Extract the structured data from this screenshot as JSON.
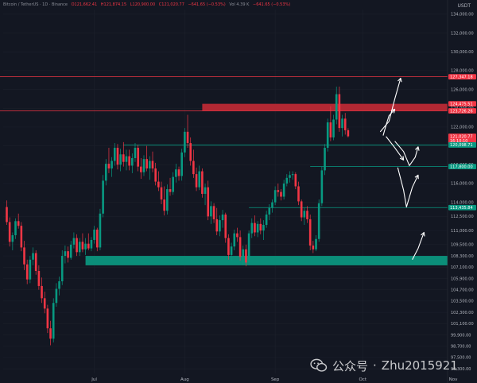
{
  "header": {
    "symbol": "Bitcoin / TetherUS · 1D · Binance",
    "o": "O121,662.41",
    "h": "H121,874.15",
    "l": "L120,900.00",
    "c": "C121,020.77",
    "chg": "−641.65 (−0.53%)",
    "vol": "Vol 4.39 K",
    "chg2": "−641.65 (−0.53%)"
  },
  "unit": "USDT",
  "watermark": {
    "app": "公众号",
    "separator": "·",
    "author": "Zhu2015921"
  },
  "colors": {
    "bg": "#131722",
    "up": "#089981",
    "down": "#f23645",
    "grid": "#1e222d",
    "label": "#b2b5be"
  },
  "chart_data": {
    "type": "candlestick",
    "y_range": [
      95800,
      134500
    ],
    "y_ticks": [
      {
        "v": 134000,
        "label": "134,000.00"
      },
      {
        "v": 132000,
        "label": "132,000.00"
      },
      {
        "v": 130000,
        "label": "130,000.00"
      },
      {
        "v": 128000,
        "label": "128,000.00"
      },
      {
        "v": 126000,
        "label": "126,000.00"
      },
      {
        "v": 124000,
        "label": "124,000.00"
      },
      {
        "v": 122000,
        "label": "122,000.00"
      },
      {
        "v": 120000,
        "label": "120,000.00"
      },
      {
        "v": 118000,
        "label": "118,000.00"
      },
      {
        "v": 116000,
        "label": "116,000.00"
      },
      {
        "v": 114000,
        "label": "114,000.00"
      },
      {
        "v": 112500,
        "label": "112,500.00"
      },
      {
        "v": 111000,
        "label": "111,000.00"
      },
      {
        "v": 109500,
        "label": "109,500.00"
      },
      {
        "v": 108300,
        "label": "108,300.00"
      },
      {
        "v": 107100,
        "label": "107,100.00"
      },
      {
        "v": 105900,
        "label": "105,900.00"
      },
      {
        "v": 104700,
        "label": "104,700.00"
      },
      {
        "v": 103500,
        "label": "103,500.00"
      },
      {
        "v": 102300,
        "label": "102,300.00"
      },
      {
        "v": 101100,
        "label": "101,100.00"
      },
      {
        "v": 99900,
        "label": "99,900.00"
      },
      {
        "v": 98700,
        "label": "98,700.00"
      },
      {
        "v": 97500,
        "label": "97,500.00"
      },
      {
        "v": 96300,
        "label": "96,300.00"
      }
    ],
    "x_labels": [
      {
        "day": 30,
        "label": "Jul"
      },
      {
        "day": 61,
        "label": "Aug"
      },
      {
        "day": 92,
        "label": "Sep"
      },
      {
        "day": 122,
        "label": "Oct"
      },
      {
        "day": 153,
        "label": "Nov"
      }
    ],
    "price_labels": [
      {
        "v": 127347.18,
        "label": "127,347.18",
        "color": "#f23645"
      },
      {
        "v": 124475.51,
        "label": "124,475.51",
        "color": "#f23645"
      },
      {
        "v": 123726.26,
        "label": "123,726.26",
        "color": "#f23645"
      },
      {
        "v": 121020.77,
        "label": "121,020.77",
        "color": "#f23645"
      },
      {
        "v": 120560,
        "label": "16:10:10",
        "color": "#f23645"
      },
      {
        "v": 120098.71,
        "label": "120,098.71",
        "color": "#089981"
      },
      {
        "v": 117800.0,
        "label": "117,800.00",
        "color": "#089981"
      },
      {
        "v": 113435.84,
        "label": "113,435.84",
        "color": "#089981"
      }
    ],
    "levels": [
      {
        "v": 127347.18,
        "from_day": 0,
        "color": "#f23645"
      },
      {
        "v": 123726.26,
        "from_day": 0,
        "color": "#f23645"
      },
      {
        "v": 120098.71,
        "from_day": 40,
        "color": "#089981"
      },
      {
        "v": 117800.0,
        "from_day": 104,
        "color": "#089981"
      },
      {
        "v": 113435.84,
        "from_day": 83,
        "color": "#089981"
      }
    ],
    "zones": [
      {
        "from_day": 67,
        "to_day": 155,
        "low": 123726.26,
        "high": 124475.51,
        "color": "#b22833"
      },
      {
        "from_day": 27,
        "to_day": 155,
        "low": 107300,
        "high": 108300,
        "color": "#0b8e79"
      }
    ],
    "arrows": [
      [
        [
          128,
          121500
        ],
        [
          131,
          122600
        ],
        [
          133,
          125000
        ],
        [
          135,
          127200
        ]
      ],
      [
        [
          129,
          121100
        ],
        [
          130,
          122200
        ],
        [
          131,
          123200
        ],
        [
          133,
          123900
        ]
      ],
      [
        [
          130,
          121000
        ],
        [
          133,
          119800
        ],
        [
          136,
          118500
        ]
      ],
      [
        [
          133,
          120500
        ],
        [
          136,
          119400
        ],
        [
          138,
          117900
        ],
        [
          140,
          118800
        ],
        [
          141,
          119900
        ]
      ],
      [
        [
          134,
          117700
        ],
        [
          136,
          115300
        ],
        [
          137,
          113500
        ],
        [
          139,
          115600
        ],
        [
          141,
          116900
        ]
      ],
      [
        [
          139,
          107900
        ],
        [
          141,
          109100
        ],
        [
          143,
          110800
        ]
      ]
    ],
    "candles": [
      [
        0,
        113500,
        114200,
        111600,
        111900
      ],
      [
        1,
        111900,
        112400,
        109300,
        109800
      ],
      [
        2,
        109800,
        110800,
        108900,
        110500
      ],
      [
        3,
        110500,
        112300,
        110100,
        112000
      ],
      [
        4,
        112000,
        112800,
        111200,
        111500
      ],
      [
        5,
        111500,
        111900,
        108800,
        109200
      ],
      [
        6,
        109200,
        109900,
        106800,
        107400
      ],
      [
        7,
        107400,
        107900,
        105300,
        105800
      ],
      [
        8,
        105800,
        108300,
        105400,
        107900
      ],
      [
        9,
        107900,
        109200,
        107300,
        108600
      ],
      [
        10,
        108600,
        108900,
        106300,
        106700
      ],
      [
        11,
        106700,
        107300,
        104700,
        105100
      ],
      [
        12,
        105100,
        106000,
        103300,
        103800
      ],
      [
        13,
        103800,
        104500,
        102200,
        102700
      ],
      [
        14,
        102700,
        103100,
        100100,
        100600
      ],
      [
        15,
        100600,
        101400,
        98800,
        99500
      ],
      [
        16,
        99500,
        103800,
        99100,
        103300
      ],
      [
        17,
        103300,
        105400,
        102900,
        104800
      ],
      [
        18,
        104800,
        106100,
        104100,
        105600
      ],
      [
        19,
        105600,
        108900,
        105200,
        108300
      ],
      [
        20,
        108300,
        109400,
        107500,
        108800
      ],
      [
        21,
        108800,
        109300,
        107600,
        108100
      ],
      [
        22,
        108100,
        109900,
        107900,
        109500
      ],
      [
        23,
        109500,
        110800,
        109100,
        110200
      ],
      [
        24,
        110200,
        110600,
        108300,
        108700
      ],
      [
        25,
        108700,
        110200,
        108300,
        109800
      ],
      [
        26,
        109800,
        110700,
        108700,
        109000
      ],
      [
        27,
        109000,
        110200,
        108400,
        109600
      ],
      [
        28,
        109600,
        110700,
        108900,
        109100
      ],
      [
        29,
        109100,
        110300,
        108800,
        110000
      ],
      [
        30,
        110000,
        111500,
        109600,
        111100
      ],
      [
        31,
        111100,
        111300,
        108800,
        109200
      ],
      [
        32,
        109200,
        113300,
        108900,
        112800
      ],
      [
        33,
        112800,
        116900,
        112400,
        116300
      ],
      [
        34,
        116300,
        118600,
        115800,
        118100
      ],
      [
        35,
        118100,
        119800,
        117100,
        117600
      ],
      [
        36,
        117600,
        118800,
        116700,
        118400
      ],
      [
        37,
        118400,
        120300,
        117900,
        119800
      ],
      [
        38,
        119800,
        120200,
        117500,
        118000
      ],
      [
        39,
        118000,
        119700,
        117300,
        119100
      ],
      [
        40,
        119100,
        120400,
        117800,
        118300
      ],
      [
        41,
        118300,
        119600,
        117400,
        118900
      ],
      [
        42,
        118900,
        119600,
        117400,
        117900
      ],
      [
        43,
        117900,
        119200,
        117100,
        118700
      ],
      [
        44,
        118700,
        120300,
        118300,
        119800
      ],
      [
        45,
        119800,
        120100,
        117300,
        117800
      ],
      [
        46,
        117800,
        118700,
        116500,
        117200
      ],
      [
        47,
        117200,
        119000,
        116800,
        118600
      ],
      [
        48,
        118600,
        120000,
        117300,
        117600
      ],
      [
        49,
        117600,
        118900,
        116400,
        118400
      ],
      [
        50,
        118400,
        119400,
        117200,
        117600
      ],
      [
        51,
        117600,
        118200,
        115800,
        116200
      ],
      [
        52,
        116200,
        117300,
        115200,
        115600
      ],
      [
        53,
        115600,
        116200,
        113800,
        114300
      ],
      [
        54,
        114300,
        115700,
        112600,
        113100
      ],
      [
        55,
        113100,
        115900,
        112700,
        115400
      ],
      [
        56,
        115400,
        116600,
        114700,
        115100
      ],
      [
        57,
        115100,
        117200,
        114800,
        116700
      ],
      [
        58,
        116700,
        118100,
        116100,
        117500
      ],
      [
        59,
        117500,
        117800,
        116300,
        116800
      ],
      [
        60,
        116800,
        119700,
        116300,
        119300
      ],
      [
        61,
        119300,
        121900,
        118800,
        121500
      ],
      [
        62,
        121500,
        123300,
        119800,
        120300
      ],
      [
        63,
        120300,
        120900,
        117900,
        118400
      ],
      [
        64,
        118400,
        119600,
        116600,
        117000
      ],
      [
        65,
        117000,
        117700,
        115200,
        115600
      ],
      [
        66,
        115600,
        117900,
        115300,
        117300
      ],
      [
        67,
        117300,
        117600,
        114500,
        114900
      ],
      [
        68,
        114900,
        116000,
        113700,
        115600
      ],
      [
        69,
        115600,
        116300,
        112100,
        112500
      ],
      [
        70,
        112500,
        114100,
        111700,
        113600
      ],
      [
        71,
        113600,
        113900,
        111800,
        112200
      ],
      [
        72,
        112200,
        113400,
        110500,
        110900
      ],
      [
        73,
        110900,
        112600,
        110400,
        112100
      ],
      [
        74,
        112100,
        113200,
        111300,
        112700
      ],
      [
        75,
        112700,
        112900,
        109700,
        110200
      ],
      [
        76,
        110200,
        110600,
        107900,
        108400
      ],
      [
        77,
        108400,
        109700,
        107800,
        109300
      ],
      [
        78,
        109300,
        111100,
        108900,
        110700
      ],
      [
        79,
        110700,
        111300,
        109800,
        110300
      ],
      [
        80,
        110300,
        111000,
        107800,
        108200
      ],
      [
        81,
        108200,
        109400,
        107300,
        109000
      ],
      [
        82,
        109000,
        109500,
        107200,
        107600
      ],
      [
        83,
        107600,
        111000,
        107300,
        110700
      ],
      [
        84,
        110700,
        112300,
        110200,
        111800
      ],
      [
        85,
        111800,
        112600,
        110400,
        110800
      ],
      [
        86,
        110800,
        112000,
        110300,
        111700
      ],
      [
        87,
        111700,
        112300,
        110600,
        111000
      ],
      [
        88,
        111000,
        112100,
        110000,
        111600
      ],
      [
        89,
        111600,
        113100,
        111300,
        112700
      ],
      [
        90,
        112700,
        113800,
        112100,
        113400
      ],
      [
        91,
        113400,
        114300,
        112900,
        114000
      ],
      [
        92,
        114000,
        115700,
        113700,
        115300
      ],
      [
        93,
        115300,
        116000,
        114600,
        115100
      ],
      [
        94,
        115100,
        115400,
        114200,
        114600
      ],
      [
        95,
        114600,
        116400,
        114300,
        116000
      ],
      [
        96,
        116000,
        117000,
        115700,
        116600
      ],
      [
        97,
        116600,
        117300,
        116100,
        116900
      ],
      [
        98,
        116900,
        117300,
        116400,
        117000
      ],
      [
        99,
        117000,
        117200,
        115400,
        115700
      ],
      [
        100,
        115700,
        116200,
        113700,
        114100
      ],
      [
        101,
        114100,
        114300,
        112000,
        112400
      ],
      [
        102,
        112400,
        113400,
        111600,
        113100
      ],
      [
        103,
        113100,
        113600,
        111800,
        112200
      ],
      [
        104,
        112200,
        112700,
        108900,
        109400
      ],
      [
        105,
        109400,
        109900,
        108600,
        109000
      ],
      [
        106,
        109000,
        110500,
        108800,
        110100
      ],
      [
        107,
        110100,
        114300,
        109800,
        113900
      ],
      [
        108,
        113900,
        117800,
        113600,
        117400
      ],
      [
        109,
        117400,
        120200,
        116900,
        119800
      ],
      [
        110,
        119800,
        122900,
        119400,
        122500
      ],
      [
        111,
        122500,
        124200,
        120500,
        120900
      ],
      [
        112,
        120900,
        123300,
        120600,
        122800
      ],
      [
        113,
        122800,
        126300,
        122300,
        125500
      ],
      [
        114,
        125500,
        126300,
        121500,
        121900
      ],
      [
        115,
        121900,
        123300,
        121000,
        122900
      ],
      [
        116,
        122900,
        123500,
        121200,
        121662
      ],
      [
        117,
        121662,
        121874,
        120900,
        121021
      ]
    ]
  }
}
